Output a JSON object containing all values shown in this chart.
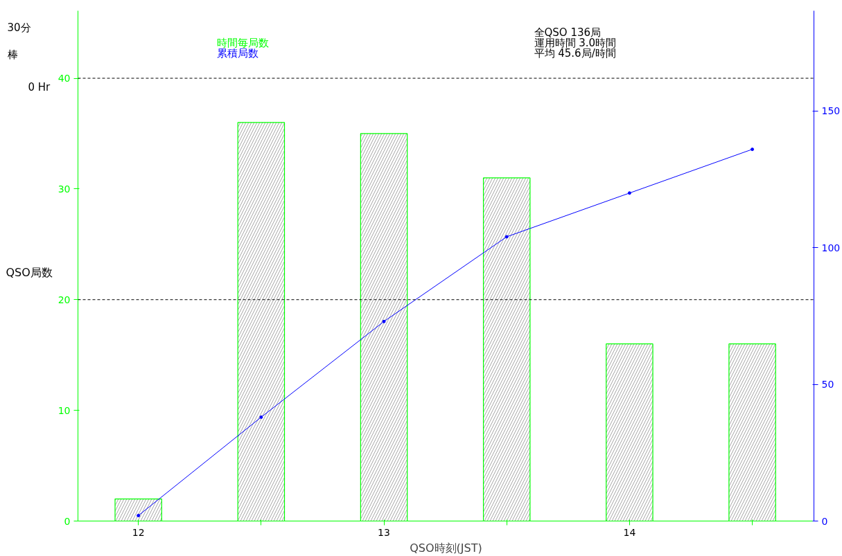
{
  "chart_data": {
    "type": "bar",
    "x": [
      12,
      12.5,
      13,
      13.5,
      14,
      14.5
    ],
    "series": [
      {
        "name": "時間毎局数",
        "color": "#00ff00",
        "values": [
          2,
          36,
          35,
          31,
          16,
          16
        ]
      },
      {
        "name": "累積局数",
        "type": "line",
        "axis": "y2",
        "color": "#0000ff",
        "values": [
          2,
          38,
          73,
          104,
          120,
          136
        ]
      }
    ],
    "xlabel": "QSO時刻(JST)",
    "ylabel": "QSO局数",
    "xlim": [
      11.754,
      14.751
    ],
    "xticks": [
      12,
      {
        "value": 12.5,
        "label": null
      },
      13,
      {
        "value": 13.5,
        "label": null
      },
      14,
      {
        "value": 14.5,
        "label": null
      }
    ],
    "ylim": [
      0,
      46.1
    ],
    "yticks": [
      0,
      10,
      20,
      30,
      40
    ],
    "y2lim": [
      0,
      186.7
    ],
    "y2ticks": [
      0,
      50,
      100,
      150
    ],
    "ref_lines": [
      {
        "axis": "y",
        "value": 20,
        "color": "#000000",
        "line_style": "dashed"
      },
      {
        "axis": "y",
        "value": 40,
        "color": "#000000",
        "line_style": "dashed"
      }
    ],
    "annotations": [
      "30分",
      "棒",
      "0 Hr",
      "全QSO 136局",
      "運用時間 3.0時間",
      "平均 45.6局/時間"
    ],
    "legend": "top",
    "marker": "circle",
    "grid": false
  }
}
